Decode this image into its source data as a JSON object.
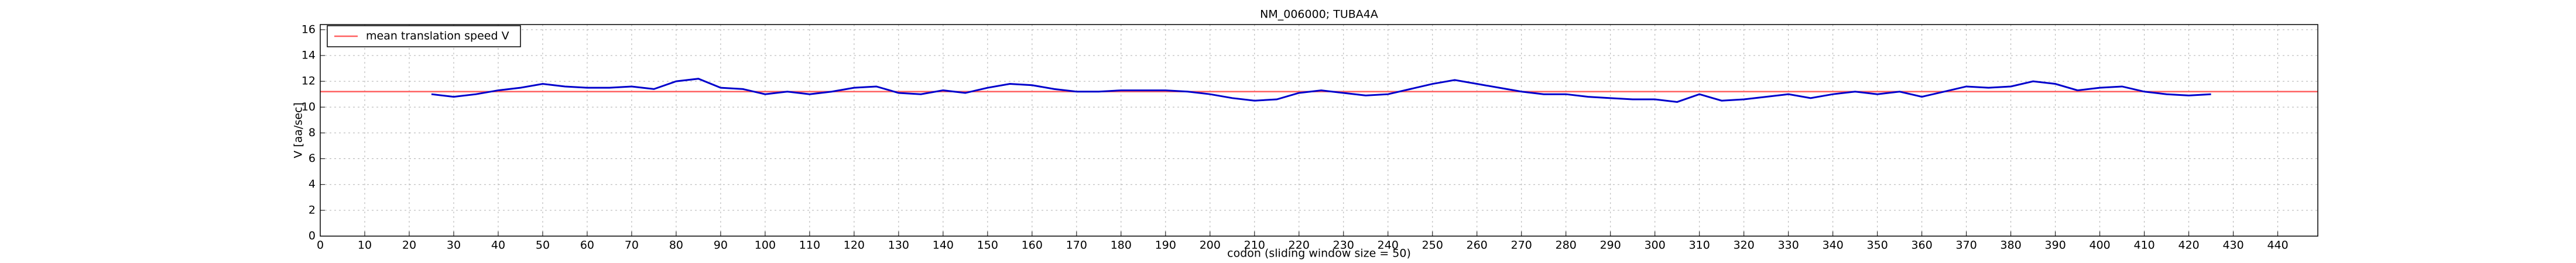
{
  "chart_data": {
    "type": "line",
    "title": "NM_006000; TUBA4A",
    "x_label": "codon  (sliding window size = 50)",
    "y_label": "V [aa/sec]",
    "xlim": [
      0,
      449
    ],
    "ylim": [
      0,
      16.4
    ],
    "xticks": [
      0,
      10,
      20,
      30,
      40,
      50,
      60,
      70,
      80,
      90,
      100,
      110,
      120,
      130,
      140,
      150,
      160,
      170,
      180,
      190,
      200,
      210,
      220,
      230,
      240,
      250,
      260,
      270,
      280,
      290,
      300,
      310,
      320,
      330,
      340,
      350,
      360,
      370,
      380,
      390,
      400,
      410,
      420,
      430,
      440
    ],
    "yticks": [
      0,
      2,
      4,
      6,
      8,
      10,
      12,
      14,
      16
    ],
    "grid": true,
    "legend": "upper left",
    "series": [
      {
        "name": "mean translation speed V",
        "color": "#ff6060",
        "x": [
          0,
          449
        ],
        "values": [
          11.2,
          11.2
        ]
      },
      {
        "color": "#0000cc",
        "x": [
          25,
          30,
          35,
          40,
          45,
          50,
          55,
          60,
          65,
          70,
          75,
          80,
          85,
          90,
          95,
          100,
          105,
          110,
          115,
          120,
          125,
          130,
          135,
          140,
          145,
          150,
          155,
          160,
          165,
          170,
          175,
          180,
          185,
          190,
          195,
          200,
          205,
          210,
          215,
          220,
          225,
          230,
          235,
          240,
          245,
          250,
          255,
          260,
          265,
          270,
          275,
          280,
          285,
          290,
          295,
          300,
          305,
          310,
          315,
          320,
          325,
          330,
          335,
          340,
          345,
          350,
          355,
          360,
          365,
          370,
          375,
          380,
          385,
          390,
          395,
          400,
          405,
          410,
          415,
          420,
          425
        ],
        "values": [
          11.0,
          10.8,
          11.0,
          11.3,
          11.5,
          11.8,
          11.6,
          11.5,
          11.5,
          11.6,
          11.4,
          12.0,
          12.2,
          11.5,
          11.4,
          11.0,
          11.2,
          11.0,
          11.2,
          11.5,
          11.6,
          11.1,
          11.0,
          11.3,
          11.1,
          11.5,
          11.8,
          11.7,
          11.4,
          11.2,
          11.2,
          11.3,
          11.3,
          11.3,
          11.2,
          11.0,
          10.7,
          10.5,
          10.6,
          11.1,
          11.3,
          11.1,
          10.9,
          11.0,
          11.4,
          11.8,
          12.1,
          11.8,
          11.5,
          11.2,
          11.0,
          11.0,
          10.8,
          10.7,
          10.6,
          10.6,
          10.4,
          11.0,
          10.5,
          10.6,
          10.8,
          11.0,
          10.7,
          11.0,
          11.2,
          11.0,
          11.2,
          10.8,
          11.2,
          11.6,
          11.5,
          11.6,
          12.0,
          11.8,
          11.3,
          11.5,
          11.6,
          11.2,
          11.0,
          10.9,
          11.0
        ]
      }
    ]
  }
}
